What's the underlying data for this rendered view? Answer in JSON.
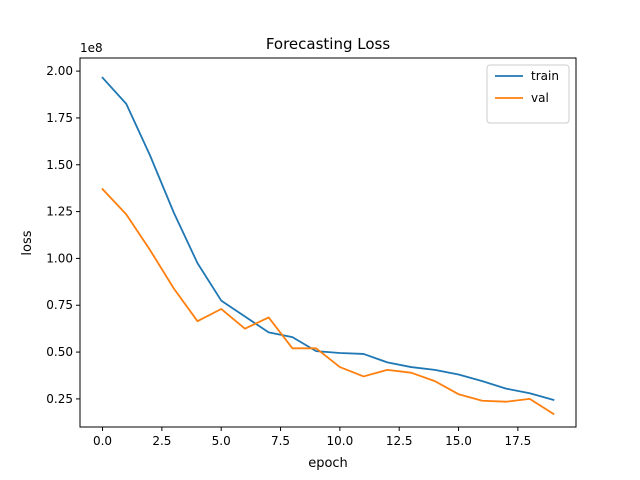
{
  "chart_data": {
    "type": "line",
    "title": "Forecasting Loss",
    "xlabel": "epoch",
    "ylabel": "loss",
    "y_offset_label": "1e8",
    "xlim": [
      -0.95,
      19.95
    ],
    "ylim": [
      0.1,
      2.07
    ],
    "x_ticks": [
      0.0,
      2.5,
      5.0,
      7.5,
      10.0,
      12.5,
      15.0,
      17.5
    ],
    "x_tick_labels": [
      "0.0",
      "2.5",
      "5.0",
      "7.5",
      "10.0",
      "12.5",
      "15.0",
      "17.5"
    ],
    "y_ticks": [
      0.25,
      0.5,
      0.75,
      1.0,
      1.25,
      1.5,
      1.75,
      2.0
    ],
    "y_tick_labels": [
      "0.25",
      "0.50",
      "0.75",
      "1.00",
      "1.25",
      "1.50",
      "1.75",
      "2.00"
    ],
    "legend_position": "top-right",
    "grid": false,
    "x": [
      0,
      1,
      2,
      3,
      4,
      5,
      6,
      7,
      8,
      9,
      10,
      11,
      12,
      13,
      14,
      15,
      16,
      17,
      18,
      19
    ],
    "series": [
      {
        "name": "train",
        "color": "#1f77b4",
        "values": [
          1.965,
          1.825,
          1.55,
          1.245,
          0.975,
          0.775,
          0.69,
          0.605,
          0.58,
          0.505,
          0.495,
          0.49,
          0.445,
          0.42,
          0.405,
          0.38,
          0.345,
          0.305,
          0.28,
          0.245
        ]
      },
      {
        "name": "val",
        "color": "#ff7f0e",
        "values": [
          1.37,
          1.235,
          1.045,
          0.84,
          0.665,
          0.73,
          0.625,
          0.685,
          0.52,
          0.52,
          0.42,
          0.37,
          0.405,
          0.39,
          0.345,
          0.275,
          0.24,
          0.235,
          0.25,
          0.17
        ]
      }
    ]
  }
}
